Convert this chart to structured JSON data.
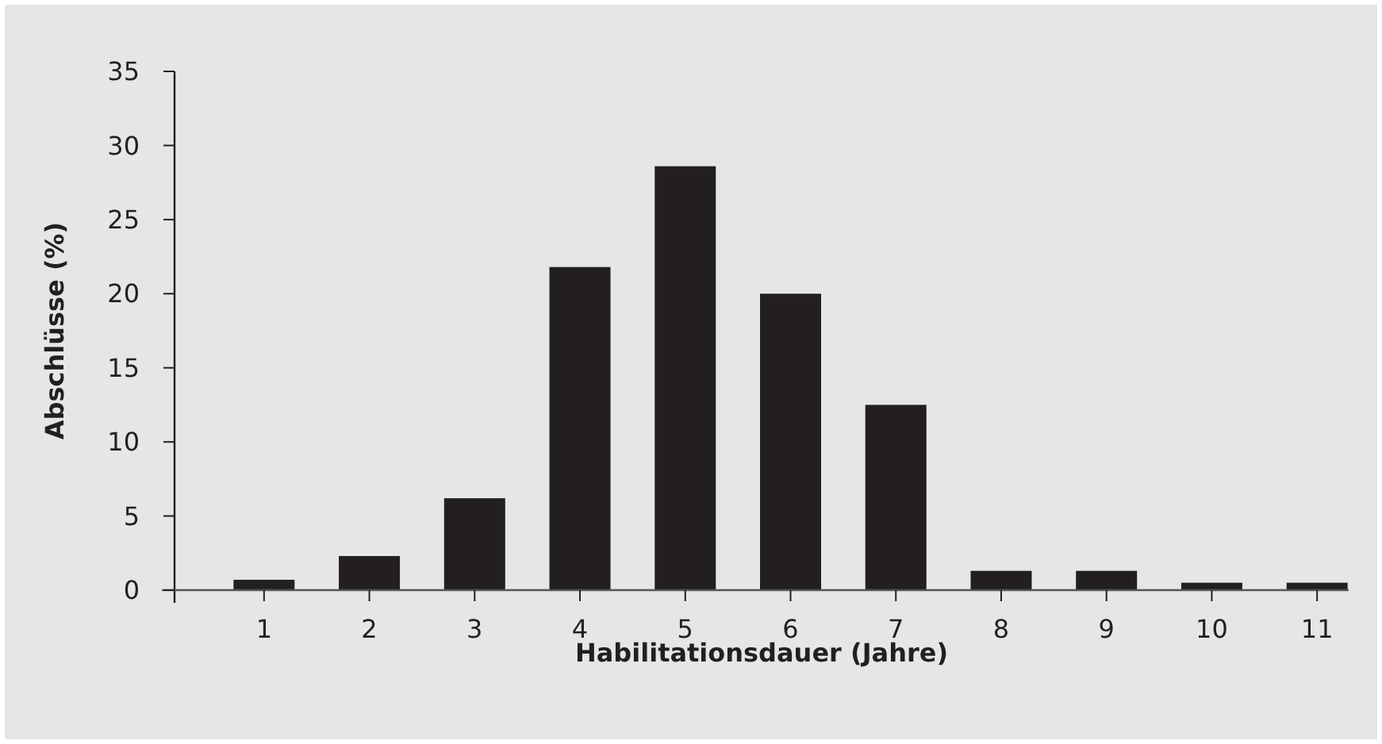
{
  "chart_data": {
    "type": "bar",
    "xlabel": "Habilitationsdauer (Jahre)",
    "ylabel": "Abschlüsse (%)",
    "categories": [
      "1",
      "2",
      "3",
      "4",
      "5",
      "6",
      "7",
      "8",
      "9",
      "10",
      "11"
    ],
    "values": [
      0.7,
      2.3,
      6.2,
      21.8,
      28.6,
      20.0,
      12.5,
      1.3,
      1.3,
      0.5,
      0.5
    ],
    "color": "#231f20",
    "ylim": [
      0,
      35
    ],
    "yticks": [
      0,
      5,
      10,
      15,
      20,
      25,
      30,
      35
    ],
    "grid": false
  }
}
